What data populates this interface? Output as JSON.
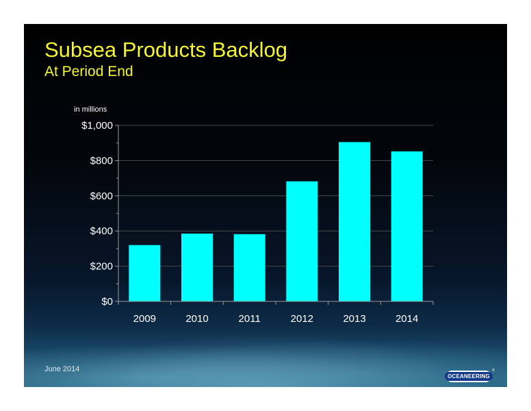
{
  "slide": {
    "title": "Subsea Products Backlog",
    "subtitle": "At Period End",
    "footer_date": "June 2014",
    "logo_text": "OCEANEERING",
    "logo_mark": "®"
  },
  "colors": {
    "bar": "#00ffff",
    "title": "#f5f536",
    "axis_text": "#ffffff",
    "grid": "#4a4a4a",
    "logo_blue": "#143a8c"
  },
  "chart_data": {
    "type": "bar",
    "title": "",
    "xlabel": "",
    "ylabel": "in millions",
    "categories": [
      "2009",
      "2010",
      "2011",
      "2012",
      "2013",
      "2014"
    ],
    "values": [
      320,
      385,
      382,
      682,
      905,
      852
    ],
    "ylim": [
      0,
      1000
    ],
    "yticks": [
      0,
      200,
      400,
      600,
      800,
      1000
    ],
    "ytick_labels": [
      "$0",
      "$200",
      "$400",
      "$600",
      "$800",
      "$1,000"
    ],
    "grid": true,
    "legend": "none"
  }
}
